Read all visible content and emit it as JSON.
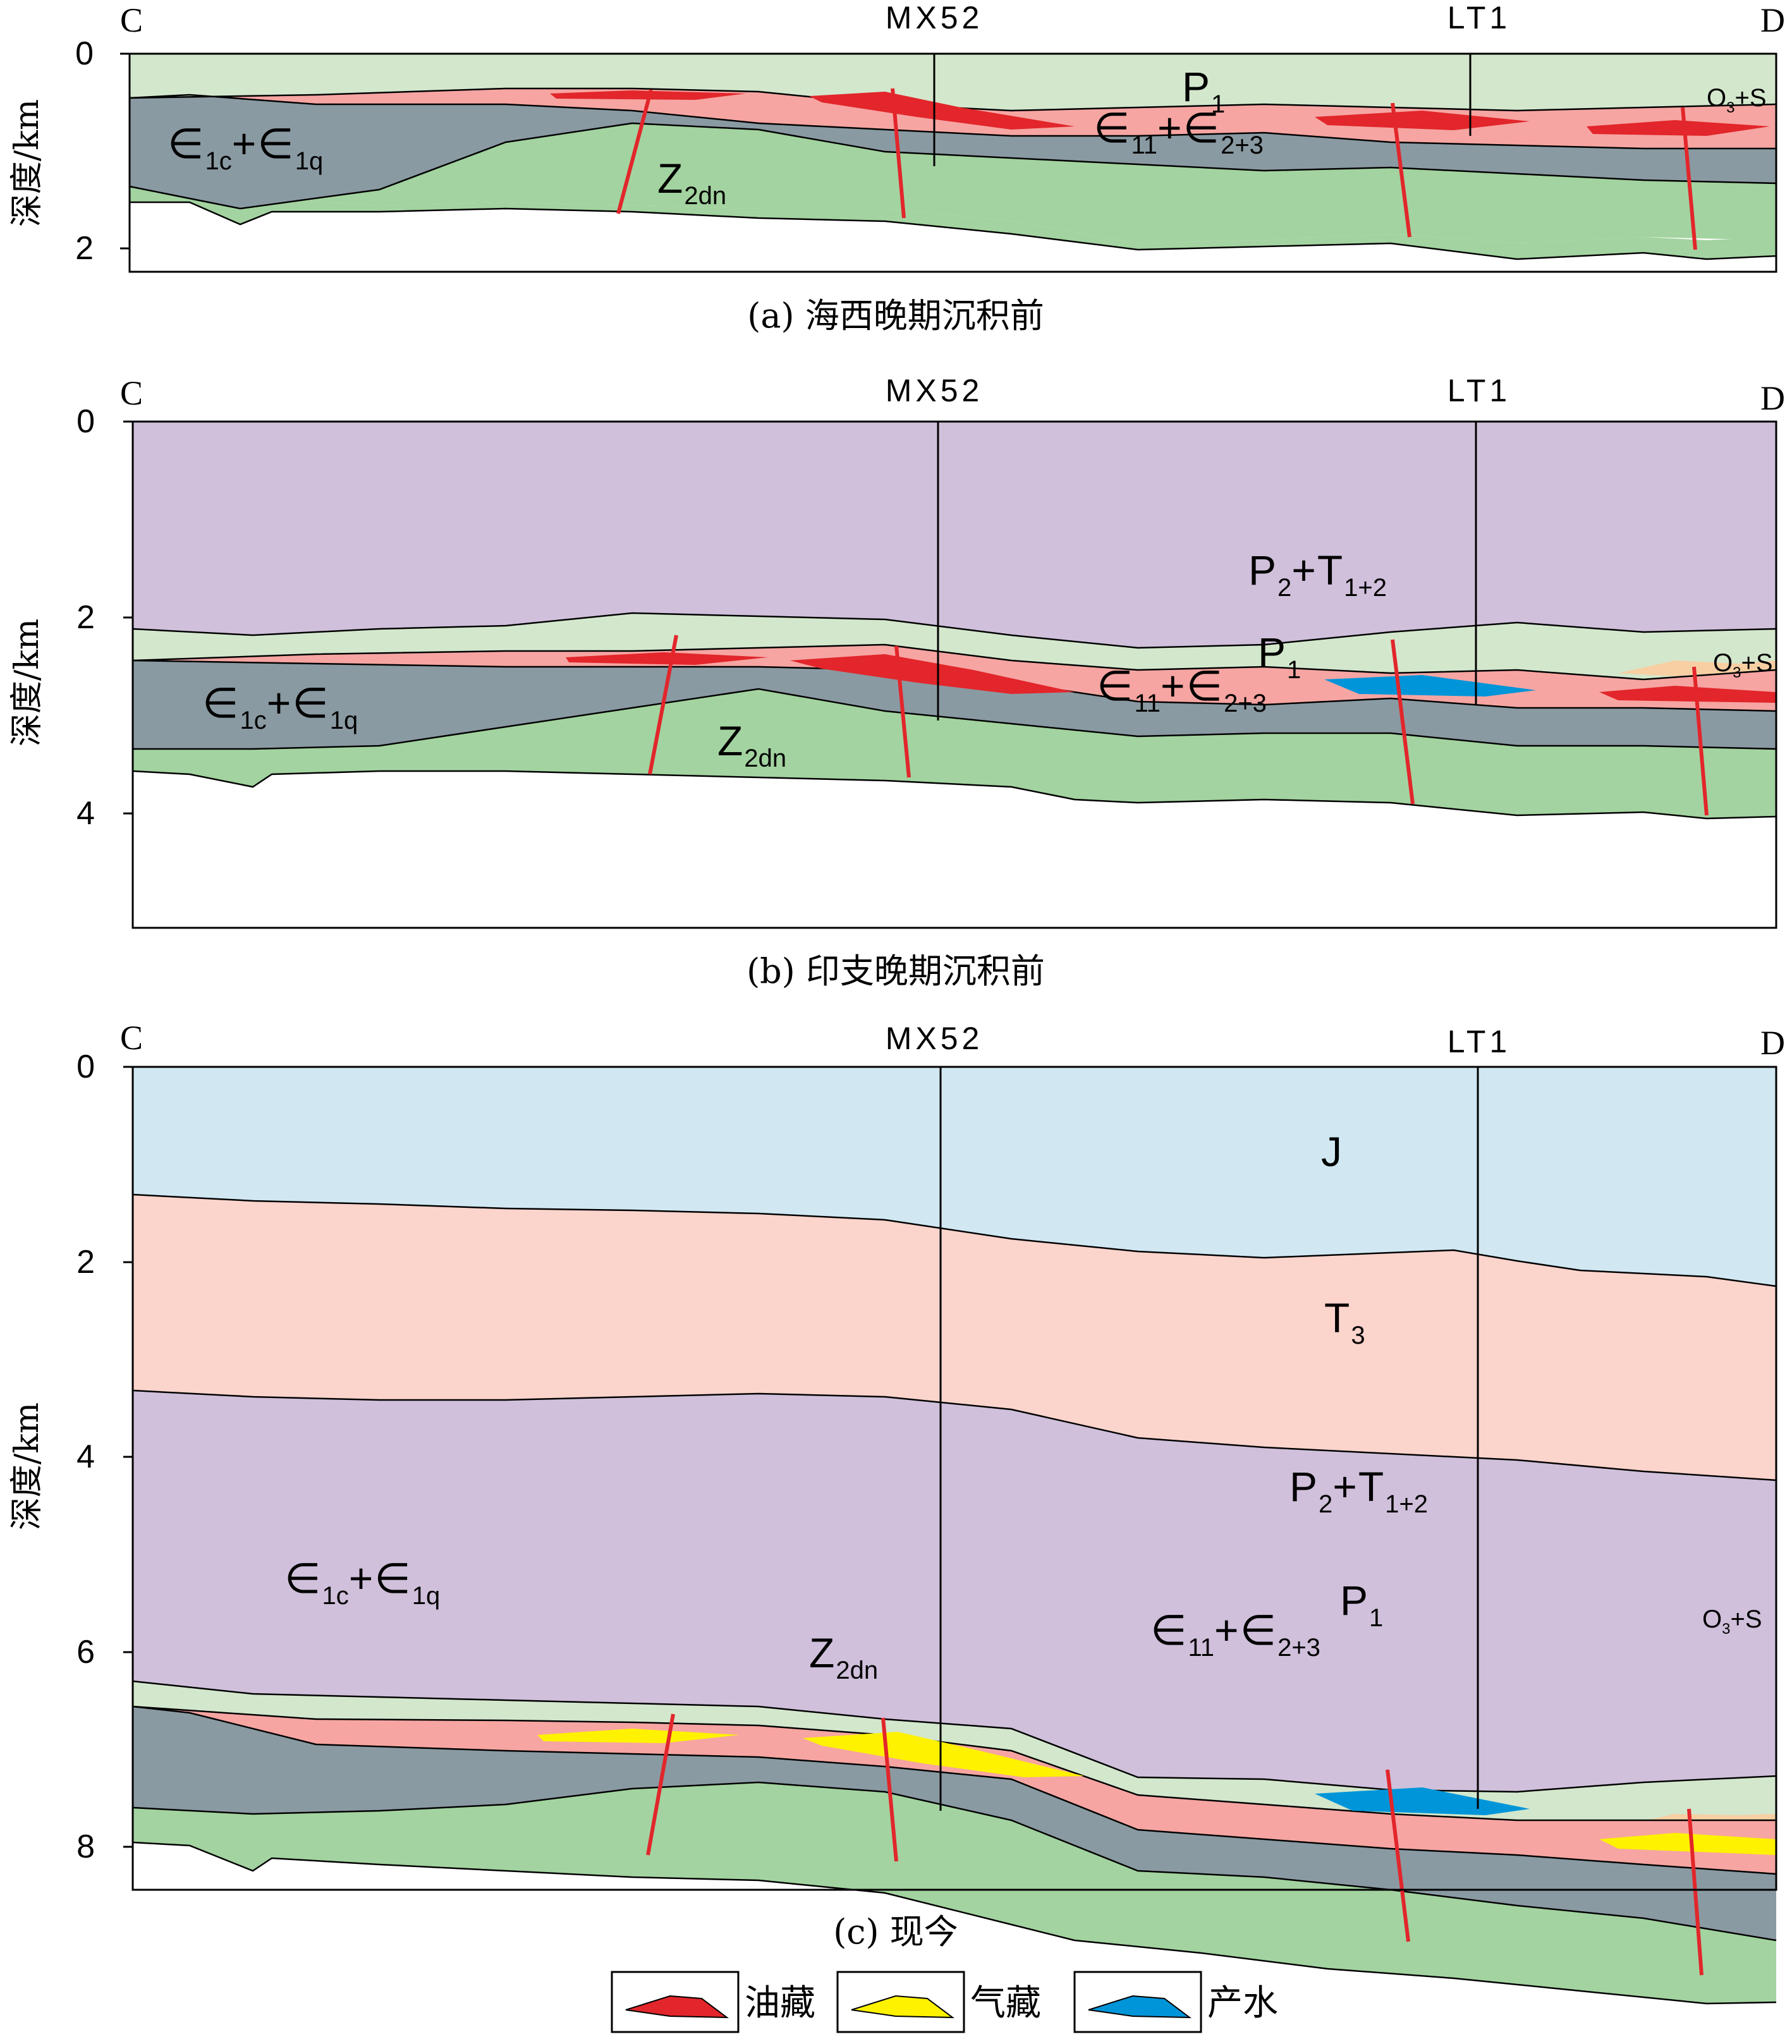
{
  "panels": [
    {
      "id": "a",
      "caption": "(a) 海西晚期沉积前",
      "left_label": "C",
      "right_label": "D",
      "wells": [
        "MX52",
        "LT1"
      ],
      "yaxis": {
        "label": "深度/km",
        "ticks": [
          "0",
          "2"
        ]
      },
      "units": [
        {
          "main": "∈",
          "sub": "1c",
          "main2": "+∈",
          "sub2": "1q"
        },
        {
          "main": "Z",
          "sub": "2dn"
        },
        {
          "main": "P",
          "sub": "1"
        },
        {
          "main": "∈",
          "sub": "11",
          "main2": "+∈",
          "sub2": "2+3"
        },
        {
          "main": "O",
          "sub": "3",
          "main2": "+S"
        }
      ]
    },
    {
      "id": "b",
      "caption": "(b) 印支晚期沉积前",
      "left_label": "C",
      "right_label": "D",
      "wells": [
        "MX52",
        "LT1"
      ],
      "yaxis": {
        "label": "深度/km",
        "ticks": [
          "0",
          "2",
          "4"
        ]
      },
      "units": [
        {
          "main": "P",
          "sub": "2",
          "main2": "+T",
          "sub2": "1+2"
        },
        {
          "main": "P",
          "sub": "1"
        },
        {
          "main": "∈",
          "sub": "1c",
          "main2": "+∈",
          "sub2": "1q"
        },
        {
          "main": "Z",
          "sub": "2dn"
        },
        {
          "main": "∈",
          "sub": "11",
          "main2": "+∈",
          "sub2": "2+3"
        },
        {
          "main": "O",
          "sub": "3",
          "main2": "+S"
        }
      ]
    },
    {
      "id": "c",
      "caption": "(c) 现今",
      "left_label": "C",
      "right_label": "D",
      "wells": [
        "MX52",
        "LT1"
      ],
      "yaxis": {
        "label": "深度/km",
        "ticks": [
          "0",
          "2",
          "4",
          "6",
          "8"
        ]
      },
      "units": [
        {
          "main": "J"
        },
        {
          "main": "T",
          "sub": "3"
        },
        {
          "main": "P",
          "sub": "2",
          "main2": "+T",
          "sub2": "1+2"
        },
        {
          "main": "∈",
          "sub": "1c",
          "main2": "+∈",
          "sub2": "1q"
        },
        {
          "main": "P",
          "sub": "1"
        },
        {
          "main": "Z",
          "sub": "2dn"
        },
        {
          "main": "∈",
          "sub": "11",
          "main2": "+∈",
          "sub2": "2+3"
        },
        {
          "main": "O",
          "sub": "3",
          "main2": "+S"
        }
      ]
    }
  ],
  "legend": [
    {
      "label": "油藏",
      "color": "#e2262b"
    },
    {
      "label": "气藏",
      "color": "#fff200"
    },
    {
      "label": "产水",
      "color": "#0095d9"
    }
  ],
  "colors": {
    "light_green": "#d3e7cc",
    "pink": "#f6a5a2",
    "slate": "#8a9aa2",
    "green": "#a3d3a0",
    "purple": "#d0c0db",
    "blue": "#d1e8f3",
    "salmon": "#fbd4cc",
    "tan": "#f7cfa3",
    "oil": "#e2262b",
    "gas": "#fff200",
    "water": "#0095d9"
  }
}
